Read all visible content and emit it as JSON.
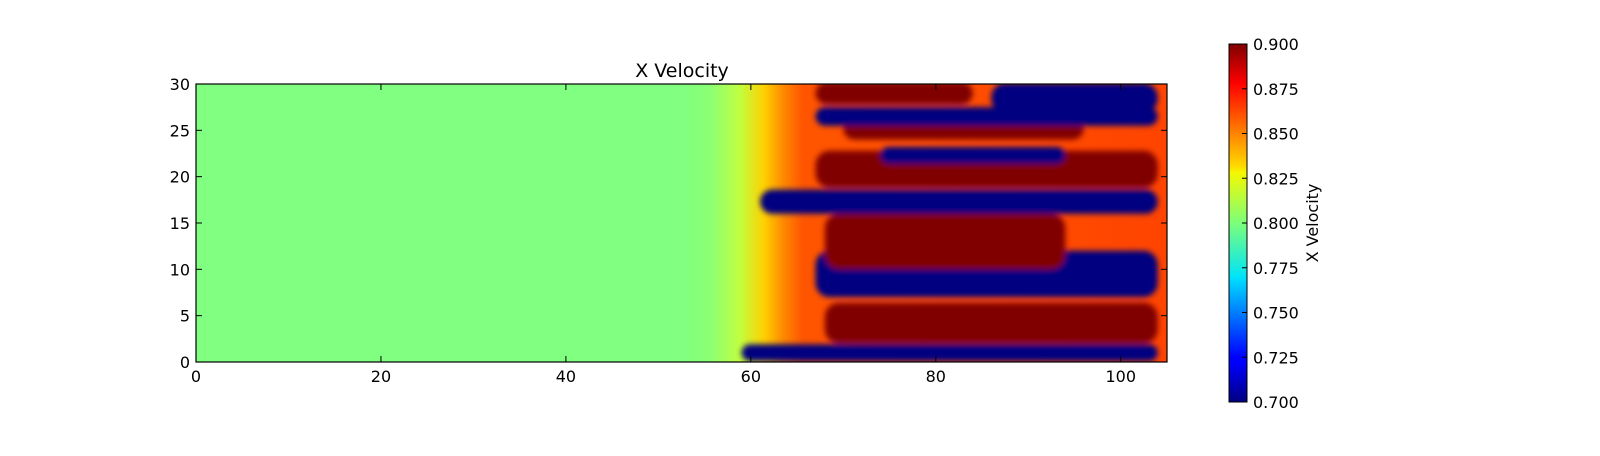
{
  "chart_data": {
    "type": "heatmap",
    "title": "X Velocity",
    "xlabel": "",
    "ylabel": "",
    "xlim": [
      0,
      105
    ],
    "ylim": [
      0,
      30
    ],
    "x_ticks": [
      0,
      20,
      40,
      60,
      80,
      100
    ],
    "y_ticks": [
      0,
      5,
      10,
      15,
      20,
      25,
      30
    ],
    "x_tick_labels": [
      "0",
      "20",
      "40",
      "60",
      "80",
      "100"
    ],
    "y_tick_labels": [
      "0",
      "5",
      "10",
      "15",
      "20",
      "25",
      "30"
    ],
    "colormap": "jet",
    "colorbar": {
      "label": "X Velocity",
      "range": [
        0.7,
        0.9
      ],
      "ticks": [
        0.7,
        0.725,
        0.75,
        0.775,
        0.8,
        0.825,
        0.85,
        0.875,
        0.9
      ],
      "tick_labels": [
        "0.700",
        "0.725",
        "0.750",
        "0.775",
        "0.800",
        "0.825",
        "0.850",
        "0.875",
        "0.900"
      ]
    },
    "field_description": {
      "background_value": 0.8,
      "bands": [
        {
          "value": 0.9,
          "x_start": 68,
          "x_end": 104,
          "y_center": 4.2,
          "half_width": 2.2
        },
        {
          "value": 0.7,
          "x_start": 67,
          "x_end": 104,
          "y_center": 9.5,
          "half_width": 2.5
        },
        {
          "value": 0.9,
          "x_start": 68,
          "x_end": 94,
          "y_center": 13.0,
          "half_width": 3.0
        },
        {
          "value": 0.7,
          "x_start": 61,
          "x_end": 104,
          "y_center": 17.3,
          "half_width": 1.3
        },
        {
          "value": 0.9,
          "x_start": 67,
          "x_end": 104,
          "y_center": 20.8,
          "half_width": 2.0
        },
        {
          "value": 0.7,
          "x_start": 74,
          "x_end": 94,
          "y_center": 22.3,
          "half_width": 0.9
        },
        {
          "value": 0.9,
          "x_start": 70,
          "x_end": 96,
          "y_center": 25.2,
          "half_width": 1.2
        },
        {
          "value": 0.7,
          "x_start": 67,
          "x_end": 104,
          "y_center": 26.5,
          "half_width": 1.0
        },
        {
          "value": 0.9,
          "x_start": 67,
          "x_end": 84,
          "y_center": 29.0,
          "half_width": 1.2
        },
        {
          "value": 0.7,
          "x_start": 86,
          "x_end": 104,
          "y_center": 28.5,
          "half_width": 1.6
        },
        {
          "value": 0.7,
          "x_start": 59,
          "x_end": 104,
          "y_center": 1.0,
          "half_width": 0.9
        }
      ]
    }
  },
  "colors": {
    "frame": "#000000",
    "background": "#ffffff"
  }
}
